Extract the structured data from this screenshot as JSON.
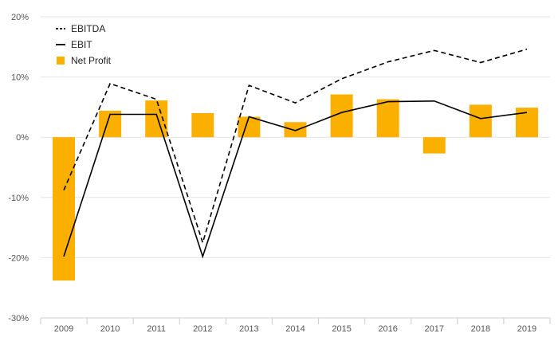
{
  "chart_data": {
    "type": "bar",
    "categories": [
      "2009",
      "2010",
      "2011",
      "2012",
      "2013",
      "2014",
      "2015",
      "2016",
      "2017",
      "2018",
      "2019"
    ],
    "series": [
      {
        "name": "Net Profit",
        "type": "bar",
        "color": "#FBB000",
        "values": [
          -23.8,
          4.4,
          6.1,
          4.0,
          3.4,
          2.5,
          7.1,
          6.3,
          -2.7,
          5.4,
          4.9
        ]
      },
      {
        "name": "EBITDA",
        "type": "line",
        "style": "dashed",
        "color": "#000000",
        "values": [
          -8.8,
          8.9,
          6.3,
          -17.5,
          8.6,
          5.7,
          9.7,
          12.5,
          14.4,
          12.4,
          14.6
        ]
      },
      {
        "name": "EBIT",
        "type": "line",
        "style": "solid",
        "color": "#000000",
        "values": [
          -19.8,
          3.8,
          3.8,
          -19.8,
          3.4,
          1.1,
          4.1,
          5.9,
          6.0,
          3.1,
          4.1
        ]
      }
    ],
    "yaxis": {
      "min": -30,
      "max": 20,
      "ticks": [
        20,
        10,
        0,
        -10,
        -20,
        -30
      ],
      "tick_labels": [
        "20%",
        "10%",
        "0%",
        "-10%",
        "-20%",
        "-30%"
      ]
    },
    "grid": true,
    "legend": {
      "position": "top-left",
      "entries": [
        "EBITDA",
        "EBIT",
        "Net Profit"
      ]
    }
  }
}
